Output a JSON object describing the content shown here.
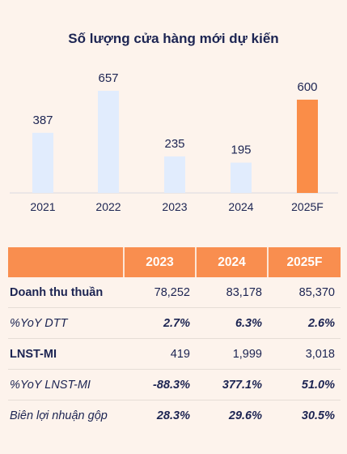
{
  "chart_data": {
    "type": "bar",
    "title": "Số lượng cửa hàng mới dự kiến",
    "categories": [
      "2021",
      "2022",
      "2023",
      "2024",
      "2025F"
    ],
    "values": [
      387,
      657,
      235,
      195,
      600
    ],
    "ylim": [
      0,
      700
    ],
    "grid": false,
    "colors": {
      "default": "#e1ecfd",
      "highlight": "#fa8d48",
      "highlight_category": "2025F"
    }
  },
  "table": {
    "headers": [
      "",
      "2023",
      "2024",
      "2025F"
    ],
    "header_color": "#f98e4f",
    "rows": [
      {
        "label": "Doanh thu thuần",
        "values": [
          "78,252",
          "83,178",
          "85,370"
        ],
        "style": "bold"
      },
      {
        "label": "%YoY DTT",
        "values": [
          "2.7%",
          "6.3%",
          "2.6%"
        ],
        "style": "italic"
      },
      {
        "label": "LNST-MI",
        "values": [
          "419",
          "1,999",
          "3,018"
        ],
        "style": "bold"
      },
      {
        "label": "%YoY LNST-MI",
        "values": [
          "-88.3%",
          "377.1%",
          "51.0%"
        ],
        "style": "italic"
      },
      {
        "label": "Biên lợi nhuận gộp",
        "values": [
          "28.3%",
          "29.6%",
          "30.5%"
        ],
        "style": "italic"
      }
    ]
  }
}
